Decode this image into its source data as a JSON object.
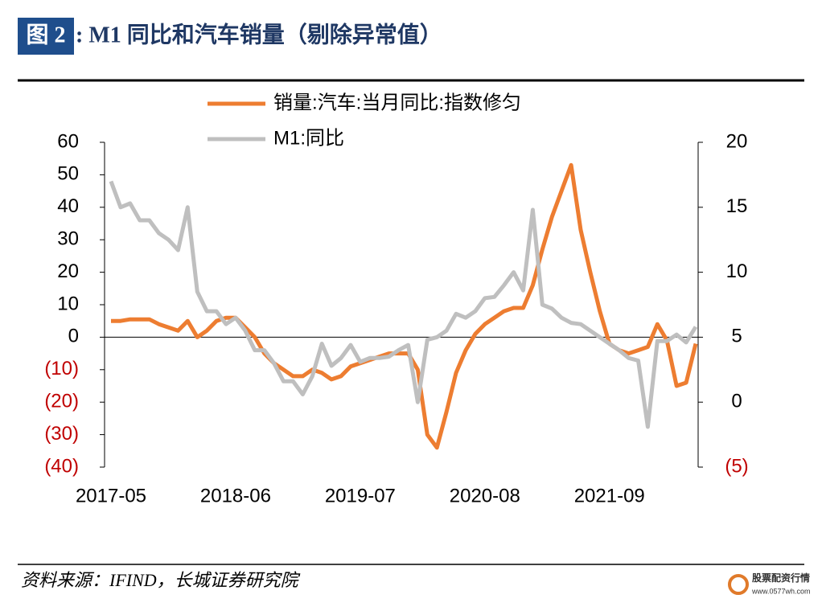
{
  "chart_data": {
    "type": "line",
    "figure_label": "图 2",
    "title": ": M1 同比和汽车销量（剔除异常值）",
    "source": "资料来源：IFIND，长城证券研究院",
    "watermark": [
      "股票配资行情",
      "www.0577wh.com"
    ],
    "categories": [
      "2017-05",
      null,
      null,
      null,
      null,
      null,
      null,
      null,
      null,
      null,
      null,
      null,
      null,
      "2018-06",
      null,
      null,
      null,
      null,
      null,
      null,
      null,
      null,
      null,
      null,
      null,
      null,
      "2019-07",
      null,
      null,
      null,
      null,
      null,
      null,
      null,
      null,
      null,
      null,
      null,
      null,
      "2020-08",
      null,
      null,
      null,
      null,
      null,
      null,
      null,
      null,
      null,
      null,
      null,
      null,
      "2021-09",
      null,
      null,
      null,
      null,
      null,
      null,
      null,
      null,
      null
    ],
    "series": [
      {
        "name": "销量:汽车:当月同比:指数修匀",
        "color": "#ed7d31",
        "axis": "y",
        "values": [
          5,
          5,
          5.5,
          5.5,
          5.5,
          4,
          3,
          2,
          5,
          0,
          2,
          5,
          6,
          6,
          3,
          0,
          -5,
          -8,
          -10,
          -12,
          -12,
          -10,
          -11,
          -13,
          -12,
          -9,
          -8,
          -7,
          -6,
          -5,
          -5,
          -5,
          -10,
          -30,
          -34,
          -23,
          -11,
          -4,
          1,
          4,
          6,
          8,
          9,
          9,
          16,
          27,
          37,
          45,
          53,
          33,
          20,
          8,
          -2,
          -4,
          -5,
          -4,
          -3,
          4,
          -1,
          -15,
          -14,
          -2
        ]
      },
      {
        "name": "M1:同比",
        "color": "#bfbfbf",
        "axis": "y2",
        "values": [
          17,
          15,
          15.3,
          14,
          14,
          13,
          12.5,
          11.7,
          15,
          8.5,
          7,
          7,
          6,
          6.5,
          5.5,
          4,
          4,
          3,
          1.6,
          1.6,
          0.6,
          2,
          4.5,
          2.8,
          3.4,
          4.4,
          3.1,
          3.4,
          3.4,
          3.5,
          4,
          4.4,
          0,
          4.8,
          5,
          5.5,
          6.8,
          6.5,
          7,
          8,
          8.1,
          9,
          10,
          8.6,
          14.8,
          7.5,
          7.2,
          6.5,
          6.1,
          6,
          5.5,
          5,
          4.5,
          4,
          3.4,
          3.2,
          -1.9,
          4.7,
          4.7,
          5.2,
          4.6,
          5.8
        ]
      }
    ],
    "ylim": [
      -40,
      60
    ],
    "yticks": [
      {
        "value": -40,
        "label": "(40)"
      },
      {
        "value": -30,
        "label": "(30)"
      },
      {
        "value": -20,
        "label": "(20)"
      },
      {
        "value": -10,
        "label": "(10)"
      },
      0,
      10,
      20,
      30,
      40,
      50,
      60
    ],
    "y2lim": [
      -5,
      20
    ],
    "y2ticks": [
      {
        "value": -5,
        "label": "(5)"
      },
      0,
      5,
      10,
      15,
      20
    ],
    "negative_tick_color": "#c00000",
    "grid": false,
    "legend": "top"
  }
}
